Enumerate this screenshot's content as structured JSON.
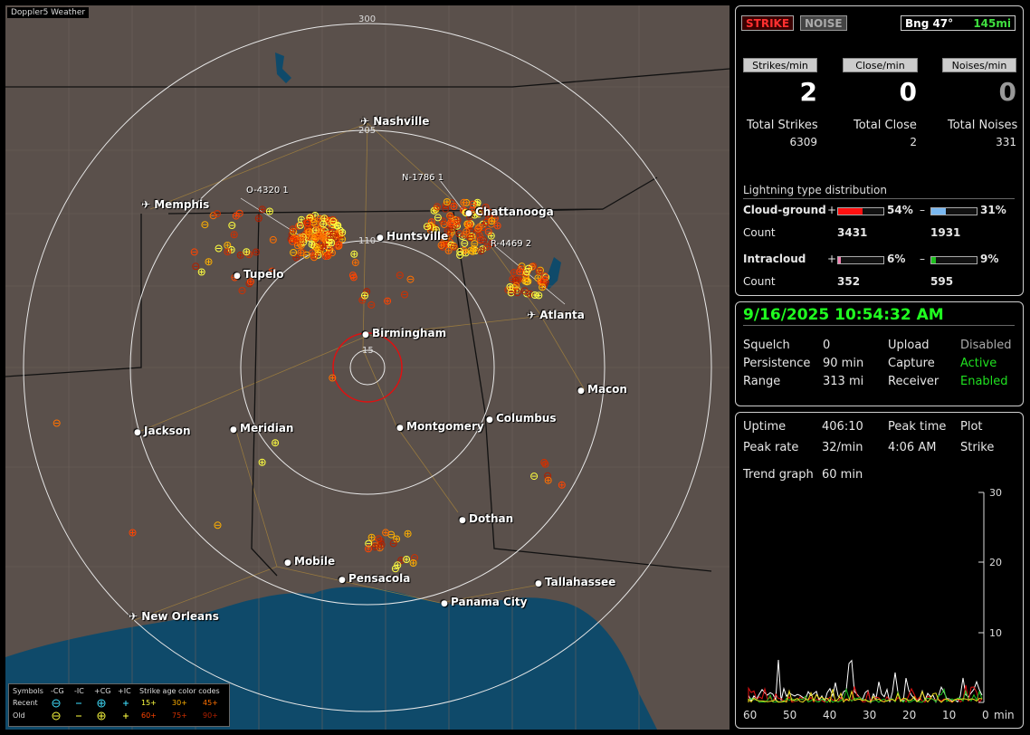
{
  "app_name": "Doppler5 Weather",
  "map": {
    "ring_labels": [
      "300",
      "205",
      "110",
      "15"
    ],
    "cities": [
      "Nashville",
      "Memphis",
      "Chattanooga",
      "Huntsville",
      "Tupelo",
      "Birmingham",
      "Atlanta",
      "Macon",
      "Jackson",
      "Meridian",
      "Montgomery",
      "Columbus",
      "Dothan",
      "Mobile",
      "Pensacola",
      "Tallahassee",
      "Panama City",
      "New Orleans"
    ],
    "airport_icon": "airplane-icon",
    "markers": [
      "O-4320  1",
      "N-1786  1",
      "R-4469  2"
    ],
    "legend": {
      "symbols_label": "Symbols",
      "col_heads": [
        "-CG",
        "-IC",
        "+CG",
        "+IC"
      ],
      "rows": [
        "Recent",
        "Old"
      ],
      "age_title": "Strike age color codes",
      "recent_ages": [
        "15+",
        "30+",
        "45+"
      ],
      "old_ages": [
        "60+",
        "75+",
        "90+"
      ],
      "age_colors": [
        "#ffff40",
        "#ffb000",
        "#ff7000",
        "#ff4400",
        "#d03000",
        "#b02000"
      ]
    }
  },
  "status": {
    "strike_btn": "STRIKE",
    "noise_btn": "NOISE",
    "bearing": "Bng 47°",
    "range": "145mi",
    "rates": [
      {
        "label": "Strikes/min",
        "value": "2"
      },
      {
        "label": "Close/min",
        "value": "0"
      },
      {
        "label": "Noises/min",
        "value": "0"
      }
    ],
    "totals": [
      {
        "label": "Total Strikes",
        "value": "6309"
      },
      {
        "label": "Total Close",
        "value": "2"
      },
      {
        "label": "Total Noises",
        "value": "331"
      }
    ],
    "dist_title": "Lightning type distribution",
    "cloud_ground": {
      "label": "Cloud-ground",
      "pos_sign": "+",
      "pos_pct": "54%",
      "pos_frac": 0.54,
      "neg_sign": "–",
      "neg_pct": "31%",
      "neg_frac": 0.31,
      "count_label": "Count",
      "pos_count": "3431",
      "neg_count": "1931"
    },
    "intracloud": {
      "label": "Intracloud",
      "pos_sign": "+",
      "pos_pct": "6%",
      "pos_frac": 0.06,
      "neg_sign": "–",
      "neg_pct": "9%",
      "neg_frac": 0.09,
      "count_label": "Count",
      "pos_count": "352",
      "neg_count": "595"
    },
    "colors": {
      "cg_pos": "#ff1010",
      "cg_neg": "#7ab8f0",
      "ic_pos": "#f080b0",
      "ic_neg": "#20c020"
    }
  },
  "settings": {
    "datetime": "9/16/2025 10:54:32 AM",
    "rows": [
      {
        "k": "Squelch",
        "v": "0",
        "k2": "Upload",
        "v2": "Disabled"
      },
      {
        "k": "Persistence",
        "v": "90 min",
        "k2": "Capture",
        "v2": "Active"
      },
      {
        "k": "Range",
        "v": "313 mi",
        "k2": "Receiver",
        "v2": "Enabled"
      }
    ]
  },
  "stats": {
    "uptime_label": "Uptime",
    "uptime": "406:10",
    "peak_time_label": "Peak time",
    "peak_time": "4:06 AM",
    "plot_label": "Plot",
    "plot": "Strike",
    "peak_rate_label": "Peak rate",
    "peak_rate": "32/min",
    "trend_label": "Trend graph",
    "trend": "60 min",
    "graph": {
      "y_ticks": [
        "30",
        "20",
        "10"
      ],
      "x_ticks": [
        "60",
        "50",
        "40",
        "30",
        "20",
        "10",
        "0"
      ],
      "x_unit": "min"
    }
  }
}
